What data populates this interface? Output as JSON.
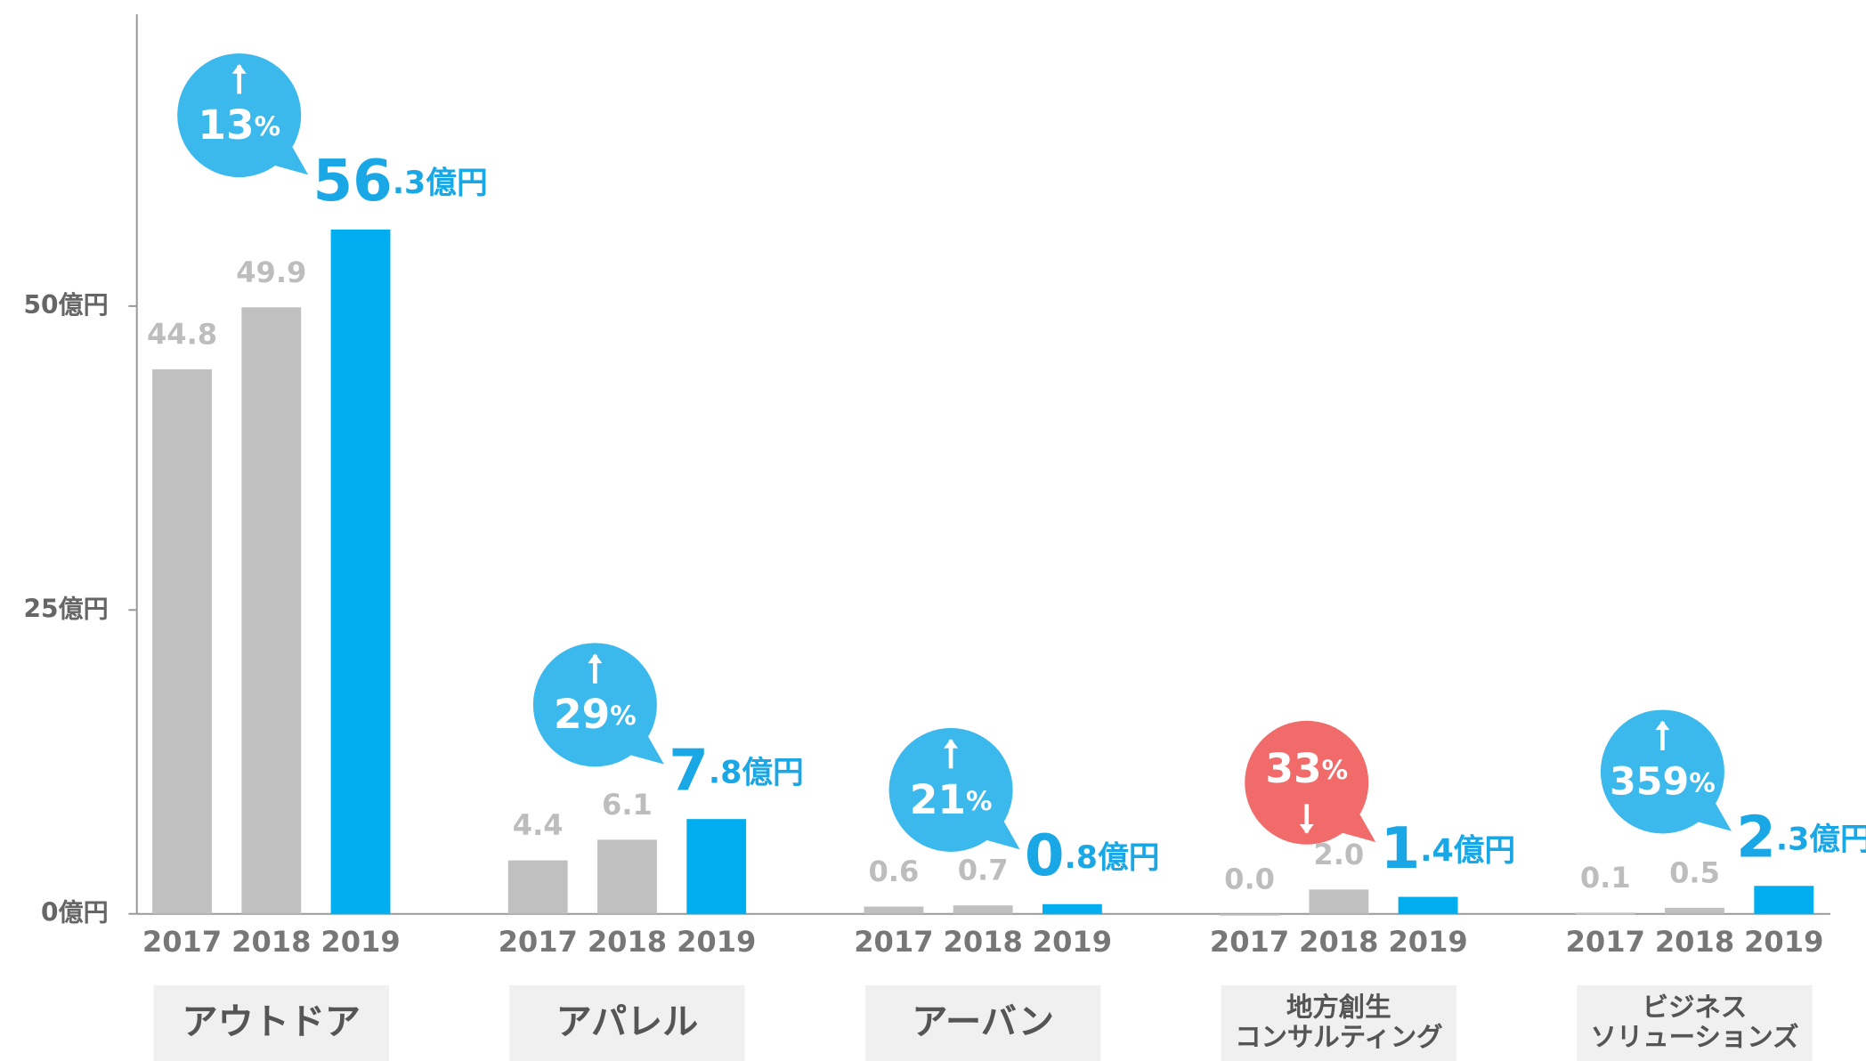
{
  "chart_data": {
    "type": "bar",
    "categories": [
      "アウトドア",
      "アパレル",
      "アーバン",
      "地方創生\nコンサルティング",
      "ビジネス\nソリューションズ"
    ],
    "series": [
      {
        "name": "2017",
        "color": "#c0c0c0",
        "label_color": "#bdbdbd",
        "values": [
          44.8,
          4.4,
          0.6,
          0.0,
          0.1
        ],
        "value_labels": [
          "44.8",
          "4.4",
          "0.6",
          "0.0",
          "0.1"
        ]
      },
      {
        "name": "2018",
        "color": "#c0c0c0",
        "label_color": "#bdbdbd",
        "values": [
          49.9,
          6.1,
          0.7,
          2.0,
          0.5
        ],
        "value_labels": [
          "49.9",
          "6.1",
          "0.7",
          "2.0",
          "0.5"
        ]
      },
      {
        "name": "2019",
        "color": "#00aeef",
        "label_color": "#1aa7e6",
        "values": [
          56.3,
          7.8,
          0.8,
          1.4,
          2.3
        ],
        "value_labels": [
          "56.3億円",
          "7.8億円",
          "0.8億円",
          "1.4億円",
          "2.3億円"
        ]
      }
    ],
    "annotations": [
      {
        "text": "13%",
        "direction": "up",
        "color": "#3cb9ec"
      },
      {
        "text": "29%",
        "direction": "up",
        "color": "#3cb9ec"
      },
      {
        "text": "21%",
        "direction": "up",
        "color": "#3cb9ec"
      },
      {
        "text": "33%",
        "direction": "down",
        "color": "#f26b6b"
      },
      {
        "text": "359%",
        "direction": "up",
        "color": "#3cb9ec"
      }
    ],
    "ylim": [
      0,
      74
    ],
    "yticks": [
      {
        "value": 0,
        "label": "0億円"
      },
      {
        "value": 25,
        "label": "25億円"
      },
      {
        "value": 50,
        "label": "50億円"
      }
    ]
  }
}
